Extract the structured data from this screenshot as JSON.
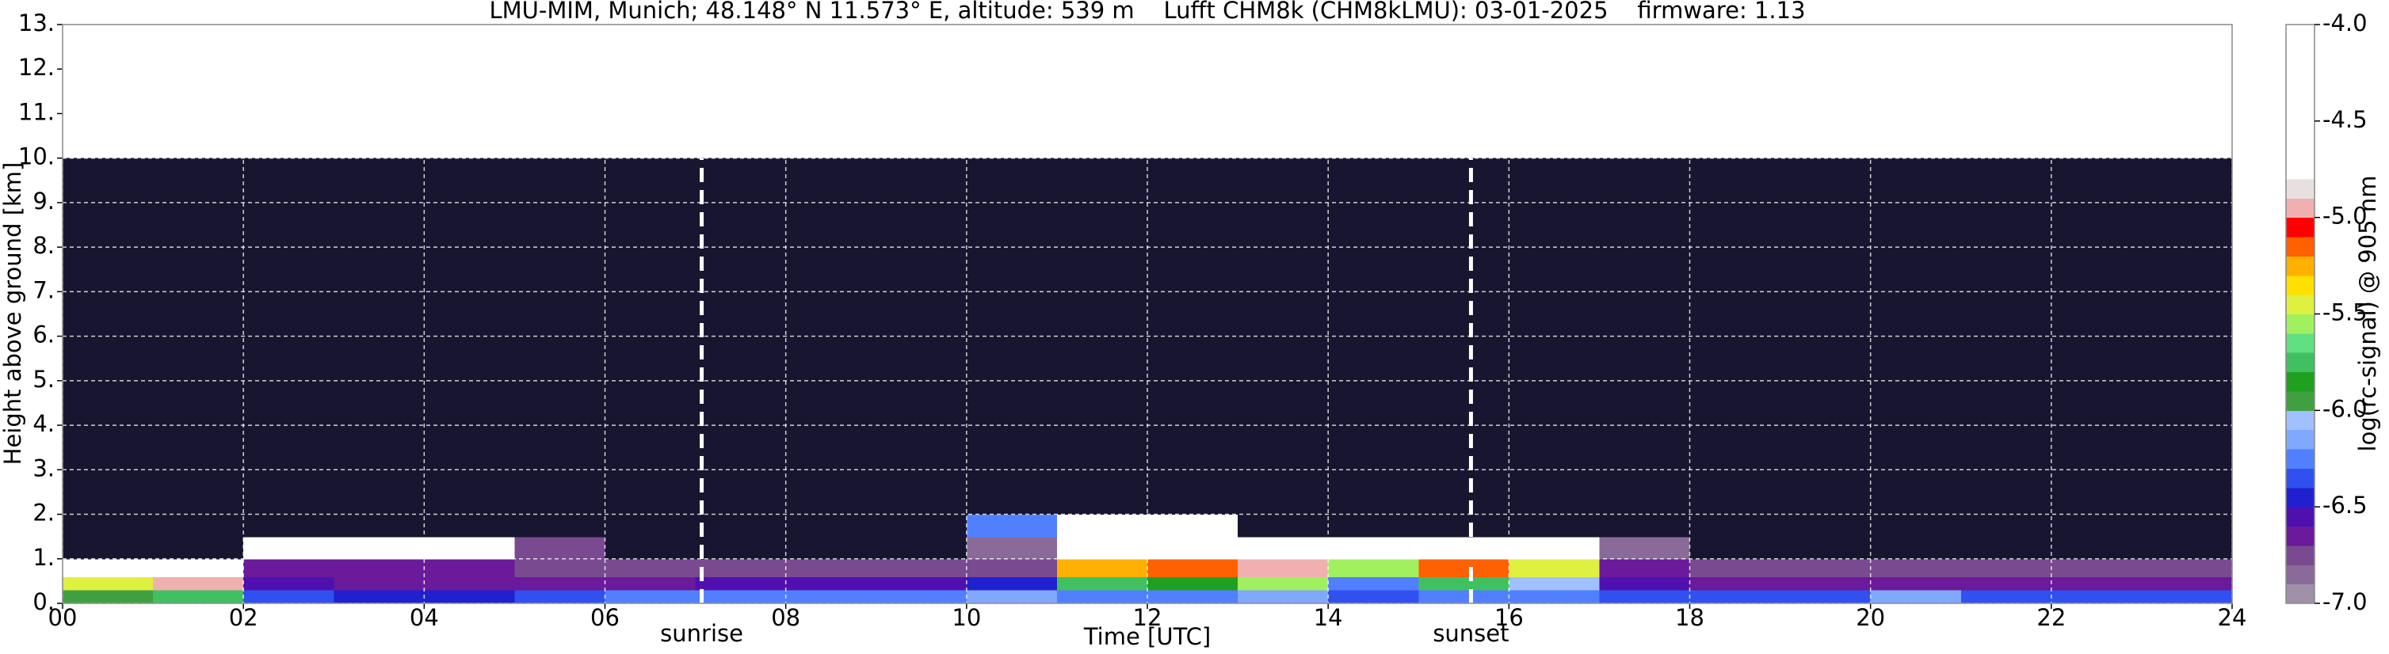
{
  "chart_data": {
    "type": "heatmap",
    "title": "LMU-MIM, Munich; 48.148° N 11.573° E, altitude: 539 m    Lufft CHM8k (CHM8kLMU): 03-01-2025    firmware: 1.13",
    "x_label": "Time [UTC]",
    "y_label": "Height above ground [km]",
    "xbins": [
      0,
      1,
      2,
      3,
      4,
      5,
      6,
      7,
      8,
      9,
      10,
      11,
      12,
      13,
      14,
      15,
      16,
      17,
      18,
      19,
      20,
      21,
      22,
      23,
      24
    ],
    "ybins": [
      0,
      0.3,
      0.6,
      1,
      1.5,
      2,
      4,
      7,
      10
    ],
    "z": [
      [
        -6.0,
        -5.8,
        -6.4,
        -6.5,
        -6.5,
        -6.4,
        -6.3,
        -6.3,
        -6.3,
        -6.3,
        -6.2,
        -6.3,
        -6.3,
        -6.2,
        -6.4,
        -6.3,
        -6.3,
        -6.4,
        -6.4,
        -6.4,
        -6.2,
        -6.4,
        -6.4,
        -6.4
      ],
      [
        -5.5,
        -5.0,
        -6.6,
        -6.7,
        -6.7,
        -6.7,
        -6.7,
        -6.6,
        -6.6,
        -6.6,
        -6.5,
        -5.8,
        -5.9,
        -5.6,
        -6.3,
        -5.8,
        -6.1,
        -6.6,
        -6.7,
        -6.7,
        -6.7,
        -6.7,
        -6.7,
        -6.7
      ],
      [
        -4.5,
        -4.6,
        -6.7,
        -6.7,
        -6.7,
        -6.8,
        -6.8,
        -6.8,
        -6.8,
        -6.8,
        -6.8,
        -5.3,
        -5.2,
        -5.0,
        -5.6,
        -5.2,
        -5.5,
        -6.7,
        -6.75,
        -6.75,
        -6.75,
        -6.75,
        -6.8,
        -6.8
      ],
      [
        -7.2,
        -7.2,
        -4.5,
        -4.5,
        -4.6,
        -6.8,
        -7.1,
        -7.05,
        -7.05,
        -7.05,
        -6.9,
        -4.7,
        -4.8,
        -4.6,
        -4.8,
        -4.6,
        -4.7,
        -6.9,
        -7.1,
        -7.1,
        -7.1,
        -7.1,
        -7.1,
        -7.1
      ],
      [
        -7.2,
        -7.2,
        -7.2,
        -7.2,
        -7.2,
        -7.2,
        -7.1,
        -7.05,
        -7.05,
        -7.05,
        -6.3,
        -4.6,
        -4.6,
        -7.05,
        -7.05,
        -7.05,
        -7.1,
        -7.1,
        -7.2,
        -7.2,
        -7.2,
        -7.2,
        -7.2,
        -7.2
      ],
      [
        -7.2,
        -7.2,
        -7.2,
        -7.2,
        -7.2,
        -7.1,
        -7.1,
        -7.05,
        -7.05,
        -7.05,
        -7.05,
        -7.05,
        -7.05,
        -7.05,
        -7.05,
        -7.05,
        -7.1,
        -7.1,
        -7.2,
        -7.2,
        -7.2,
        -7.2,
        -7.2,
        -7.2
      ],
      [
        -7.1,
        -7.1,
        -7.1,
        -7.1,
        -7.1,
        -7.1,
        -7.05,
        -7.05,
        -7.05,
        -7.05,
        -7.05,
        -7.05,
        -7.05,
        -7.05,
        -7.05,
        -7.05,
        -7.05,
        -7.1,
        -7.1,
        -7.1,
        -7.1,
        -7.1,
        -7.1,
        -7.1
      ],
      [
        -7.1,
        -7.1,
        -7.1,
        -7.1,
        -7.1,
        -7.1,
        -7.05,
        -7.05,
        -7.05,
        -7.05,
        -7.05,
        -7.05,
        -7.05,
        -7.05,
        -7.05,
        -7.05,
        -7.05,
        -7.1,
        -7.1,
        -7.1,
        -7.1,
        -7.1,
        -7.1,
        -7.1
      ]
    ],
    "xlim": [
      0,
      24
    ],
    "ylim": [
      0,
      13
    ],
    "xticks": [
      {
        "value": 0,
        "label": "00"
      },
      {
        "value": 2,
        "label": "02"
      },
      {
        "value": 4,
        "label": "04"
      },
      {
        "value": 6,
        "label": "06"
      },
      {
        "value": 8,
        "label": "08"
      },
      10,
      12,
      14,
      16,
      18,
      20,
      22,
      24
    ],
    "yticks": [
      {
        "value": 0,
        "label": "0."
      },
      {
        "value": 1,
        "label": "1."
      },
      {
        "value": 2,
        "label": "2."
      },
      {
        "value": 3,
        "label": "3."
      },
      {
        "value": 4,
        "label": "4."
      },
      {
        "value": 5,
        "label": "5."
      },
      {
        "value": 6,
        "label": "6."
      },
      {
        "value": 7,
        "label": "7."
      },
      {
        "value": 8,
        "label": "8."
      },
      {
        "value": 9,
        "label": "9."
      },
      {
        "value": 10,
        "label": "10."
      },
      {
        "value": 11,
        "label": "11."
      },
      {
        "value": 12,
        "label": "12."
      },
      {
        "value": 13,
        "label": "13."
      }
    ],
    "grid": true,
    "annotations": [
      {
        "x": 7.07,
        "label": "sunrise"
      },
      {
        "x": 15.58,
        "label": "sunset"
      }
    ],
    "colorbar": {
      "label": "log(rc-signal) @ 905 nm",
      "levels": [
        -7.0,
        -6.9,
        -6.8,
        -6.7,
        -6.6,
        -6.5,
        -6.4,
        -6.3,
        -6.2,
        -6.1,
        -6.0,
        -5.9,
        -5.8,
        -5.7,
        -5.6,
        -5.5,
        -5.4,
        -5.3,
        -5.2,
        -5.1,
        -5.0,
        -4.9,
        -4.8,
        -4.0
      ],
      "colors": [
        "#a090a8",
        "#8a6a98",
        "#7a4a90",
        "#6a1a9a",
        "#5010b0",
        "#2020d0",
        "#3050f0",
        "#5080ff",
        "#80a8ff",
        "#a0c0ff",
        "#40a040",
        "#20a020",
        "#40c060",
        "#60e080",
        "#a0f060",
        "#e0f040",
        "#ffe000",
        "#ffb000",
        "#ff6000",
        "#ff0000",
        "#f0b0b0",
        "#e8e0e0",
        "#ffffff"
      ],
      "under_color": "#17152f",
      "ticks": [
        {
          "value": -7.0,
          "label": "-7.0"
        },
        {
          "value": -6.5,
          "label": "-6.5"
        },
        {
          "value": -6.0,
          "label": "-6.0"
        },
        {
          "value": -5.5,
          "label": "-5.5"
        },
        {
          "value": -5.0,
          "label": "-5.0"
        },
        {
          "value": -4.5,
          "label": "-4.5"
        },
        {
          "value": -4.0,
          "label": "-4.0"
        }
      ]
    }
  }
}
